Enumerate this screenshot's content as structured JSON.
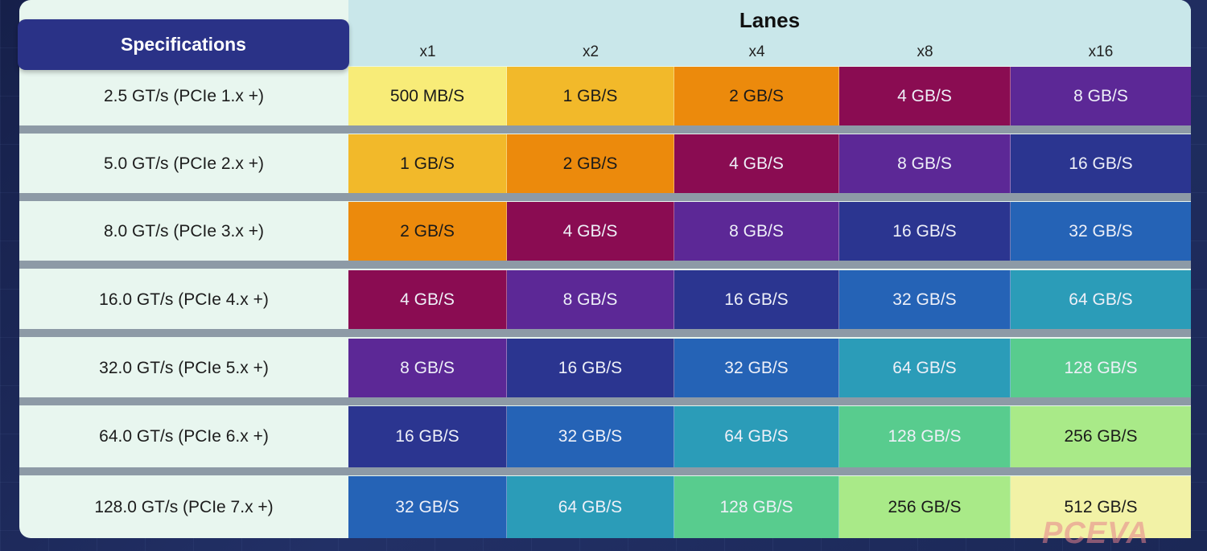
{
  "header": {
    "specifications": "Specifications",
    "lanes_title": "Lanes",
    "lanes": [
      "x1",
      "x2",
      "x4",
      "x8",
      "x16"
    ]
  },
  "rows": [
    {
      "spec": "2.5 GT/s (PCIe 1.x +)",
      "values": [
        "500 MB/S",
        "1 GB/S",
        "2 GB/S",
        "4 GB/S",
        "8 GB/S"
      ]
    },
    {
      "spec": "5.0 GT/s (PCIe 2.x +)",
      "values": [
        "1 GB/S",
        "2 GB/S",
        "4 GB/S",
        "8 GB/S",
        "16 GB/S"
      ]
    },
    {
      "spec": "8.0 GT/s (PCIe 3.x +)",
      "values": [
        "2 GB/S",
        "4 GB/S",
        "8 GB/S",
        "16 GB/S",
        "32 GB/S"
      ]
    },
    {
      "spec": "16.0 GT/s (PCIe 4.x +)",
      "values": [
        "4 GB/S",
        "8 GB/S",
        "16 GB/S",
        "32 GB/S",
        "64 GB/S"
      ]
    },
    {
      "spec": "32.0 GT/s (PCIe 5.x +)",
      "values": [
        "8 GB/S",
        "16 GB/S",
        "32 GB/S",
        "64 GB/S",
        "128 GB/S"
      ]
    },
    {
      "spec": "64.0 GT/s (PCIe 6.x +)",
      "values": [
        "16 GB/S",
        "32 GB/S",
        "64 GB/S",
        "128 GB/S",
        "256 GB/S"
      ]
    },
    {
      "spec": "128.0 GT/s (PCIe 7.x +)",
      "values": [
        "32 GB/S",
        "64 GB/S",
        "128 GB/S",
        "256 GB/S",
        "512 GB/S"
      ]
    }
  ],
  "palette": {
    "500 MB/S": "#f8ec78",
    "1 GB/S": "#f2b92a",
    "2 GB/S": "#ec8a0c",
    "4 GB/S": "#8a0c52",
    "8 GB/S": "#5c2896",
    "16 GB/S": "#2b3590",
    "32 GB/S": "#2563b6",
    "64 GB/S": "#2b9cb8",
    "128 GB/S": "#58cc8e",
    "256 GB/S": "#a9ea88",
    "512 GB/S": "#f2f2a6"
  },
  "dark_text": [
    "500 MB/S",
    "1 GB/S",
    "2 GB/S",
    "256 GB/S",
    "512 GB/S"
  ],
  "watermark": "PCEVA"
}
